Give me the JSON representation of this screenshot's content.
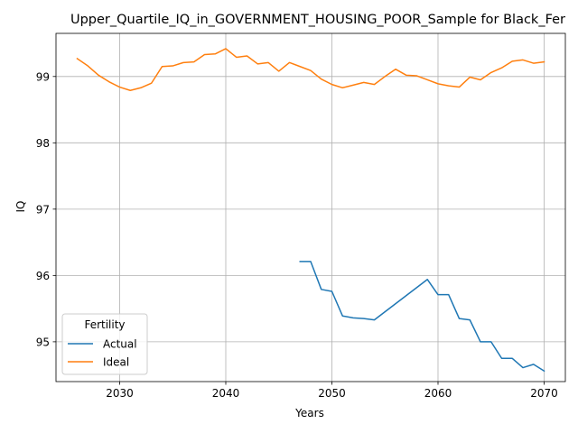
{
  "chart_data": {
    "type": "line",
    "title": "Upper_Quartile_IQ_in_GOVERNMENT_HOUSING_POOR_Sample for Black_Fer",
    "xlabel": "Years",
    "ylabel": "IQ",
    "xlim": [
      2024.0,
      2072.0
    ],
    "ylim": [
      94.4,
      99.65
    ],
    "x_ticks": [
      2030,
      2040,
      2050,
      2060,
      2070
    ],
    "y_ticks": [
      95,
      96,
      97,
      98,
      99
    ],
    "grid": true,
    "legend": {
      "title": "Fertility",
      "placement": "lower-left"
    },
    "series": [
      {
        "name": "Actual",
        "color": "#1f77b4",
        "x": [
          2047,
          2048,
          2049,
          2050,
          2051,
          2052,
          2053,
          2054,
          2059,
          2060,
          2061,
          2062,
          2063,
          2064,
          2065,
          2066,
          2067,
          2068,
          2069,
          2070
        ],
        "values": [
          96.21,
          96.21,
          95.79,
          95.76,
          95.39,
          95.36,
          95.35,
          95.33,
          95.94,
          95.71,
          95.71,
          95.35,
          95.33,
          95.0,
          95.0,
          94.75,
          94.75,
          94.61,
          94.66,
          94.56
        ]
      },
      {
        "name": "Ideal",
        "color": "#ff7f0e",
        "x": [
          2026,
          2027,
          2028,
          2029,
          2030,
          2031,
          2032,
          2033,
          2034,
          2035,
          2036,
          2037,
          2038,
          2039,
          2040,
          2041,
          2042,
          2043,
          2044,
          2045,
          2046,
          2047,
          2048,
          2049,
          2050,
          2051,
          2052,
          2053,
          2054,
          2055,
          2056,
          2057,
          2058,
          2059,
          2060,
          2061,
          2062,
          2063,
          2064,
          2065,
          2066,
          2067,
          2068,
          2069,
          2070
        ],
        "values": [
          99.27,
          99.16,
          99.02,
          98.92,
          98.84,
          98.79,
          98.83,
          98.9,
          99.15,
          99.16,
          99.21,
          99.22,
          99.33,
          99.34,
          99.42,
          99.29,
          99.31,
          99.19,
          99.21,
          99.08,
          99.21,
          99.15,
          99.09,
          98.96,
          98.88,
          98.83,
          98.87,
          98.91,
          98.88,
          99.0,
          99.11,
          99.02,
          99.01,
          98.95,
          98.89,
          98.86,
          98.84,
          98.99,
          98.95,
          99.06,
          99.13,
          99.23,
          99.25,
          99.2,
          99.22
        ]
      }
    ]
  }
}
